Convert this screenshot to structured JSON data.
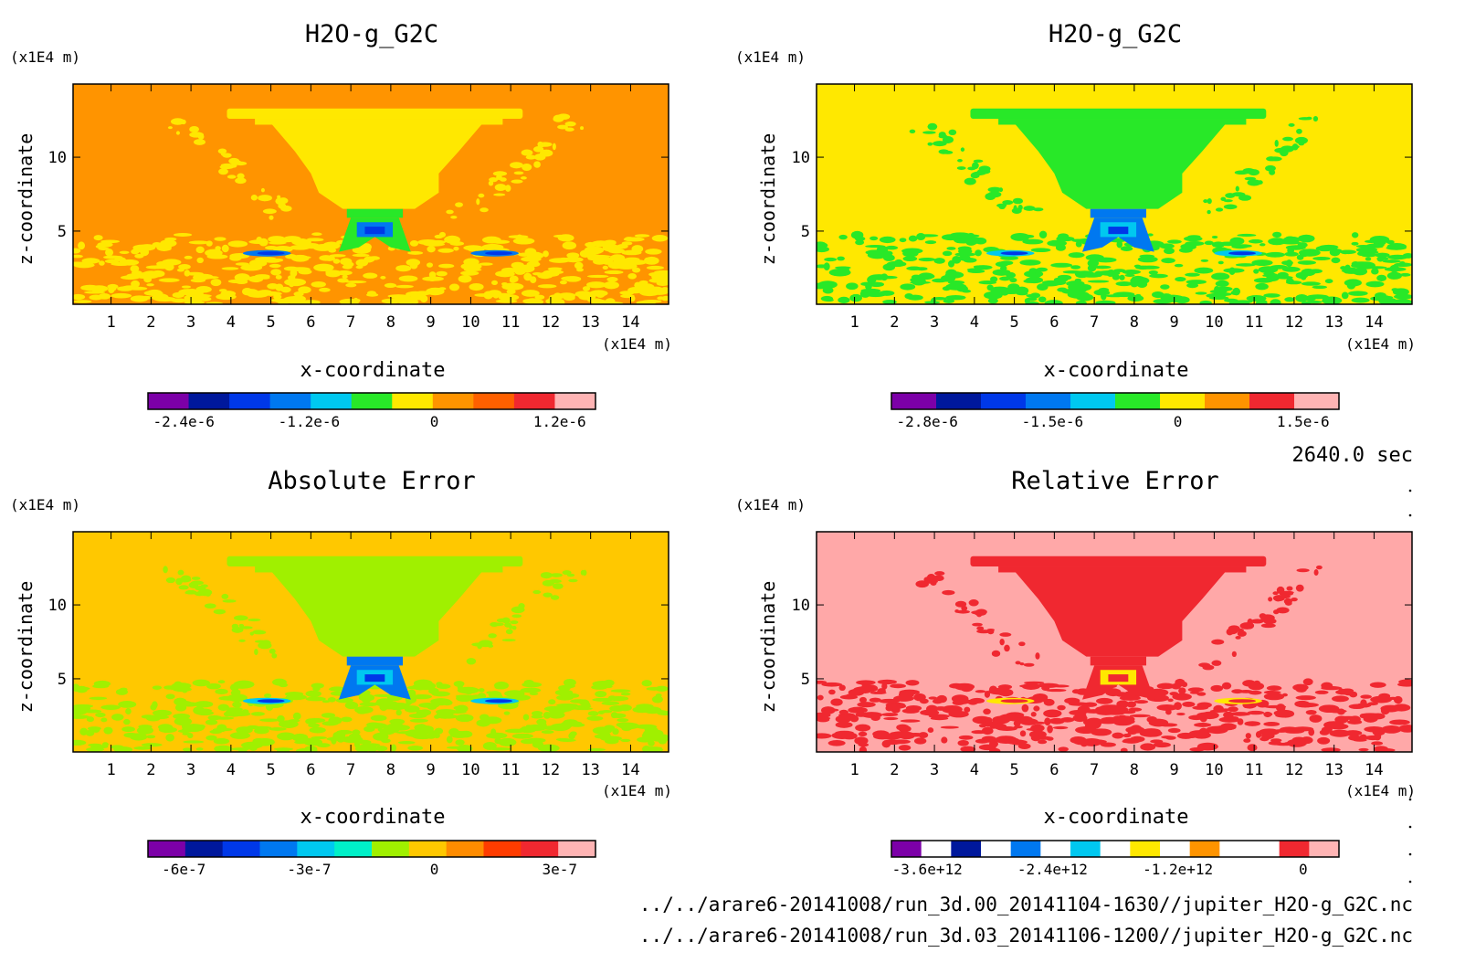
{
  "time_label": "2640.0 sec",
  "files": [
    "../../arare6-20141008/run_3d.00_20141104-1630//jupiter_H2O-g_G2C.nc",
    "../../arare6-20141008/run_3d.03_20141106-1200//jupiter_H2O-g_G2C.nc"
  ],
  "chart_data": [
    {
      "type": "heatmap",
      "title": "H2O-g_G2C",
      "xlabel": "x-coordinate",
      "ylabel": "z-coordinate",
      "x_unit": "(x1E4 m)",
      "y_unit": "(x1E4 m)",
      "xticks": [
        "1",
        "2",
        "3",
        "4",
        "5",
        "6",
        "7",
        "8",
        "9",
        "10",
        "11",
        "12",
        "13",
        "14"
      ],
      "yticks": [
        "5",
        "10"
      ],
      "xlim": [
        0.05,
        14.95
      ],
      "ylim": [
        0.05,
        14.95
      ],
      "background": "#ff9400",
      "levels_colors": [
        "#7c00a8",
        "#00189c",
        "#0038e8",
        "#0078f0",
        "#00c8f0",
        "#28e828",
        "#ffe800",
        "#ff9400",
        "#ff6000",
        "#f02830",
        "#ffb4b4"
      ],
      "colorbar_labels": [
        "-2.4e-6",
        "-1.2e-6",
        "0",
        "1.2e-6"
      ],
      "colors": {
        "plume": "#ffe800",
        "speckle": "#ffe800",
        "core": "#28e828",
        "inner": "#0078f0",
        "deep": "#0038e8"
      }
    },
    {
      "type": "heatmap",
      "title": "H2O-g_G2C",
      "xlabel": "x-coordinate",
      "ylabel": "z-coordinate",
      "x_unit": "(x1E4 m)",
      "y_unit": "(x1E4 m)",
      "xticks": [
        "1",
        "2",
        "3",
        "4",
        "5",
        "6",
        "7",
        "8",
        "9",
        "10",
        "11",
        "12",
        "13",
        "14"
      ],
      "yticks": [
        "5",
        "10"
      ],
      "xlim": [
        0.05,
        14.95
      ],
      "ylim": [
        0.05,
        14.95
      ],
      "background": "#ffe800",
      "levels_colors": [
        "#7c00a8",
        "#00189c",
        "#0038e8",
        "#0078f0",
        "#00c8f0",
        "#28e828",
        "#ffe800",
        "#ff9400",
        "#f02830",
        "#ffb4b4"
      ],
      "colorbar_labels": [
        "-2.8e-6",
        "-1.5e-6",
        "0",
        "1.5e-6"
      ],
      "colors": {
        "plume": "#28e828",
        "speckle": "#28e828",
        "core": "#0078f0",
        "inner": "#00c8f0",
        "deep": "#0038e8"
      }
    },
    {
      "type": "heatmap",
      "title": "Absolute Error",
      "xlabel": "x-coordinate",
      "ylabel": "z-coordinate",
      "x_unit": "(x1E4 m)",
      "y_unit": "(x1E4 m)",
      "xticks": [
        "1",
        "2",
        "3",
        "4",
        "5",
        "6",
        "7",
        "8",
        "9",
        "10",
        "11",
        "12",
        "13",
        "14"
      ],
      "yticks": [
        "5",
        "10"
      ],
      "xlim": [
        0.05,
        14.95
      ],
      "ylim": [
        0.05,
        14.95
      ],
      "background": "#ffc800",
      "levels_colors": [
        "#7c00a8",
        "#00189c",
        "#0038e8",
        "#0078f0",
        "#00c8f0",
        "#00f0c8",
        "#a0f000",
        "#ffc800",
        "#ff8c00",
        "#ff3c00",
        "#f02830",
        "#ffb4b4"
      ],
      "colorbar_labels": [
        "-6e-7",
        "-3e-7",
        "0",
        "3e-7"
      ],
      "colors": {
        "plume": "#a0f000",
        "speckle": "#a0f000",
        "core": "#0078f0",
        "inner": "#00c8f0",
        "deep": "#0038e8"
      }
    },
    {
      "type": "heatmap",
      "title": "Relative Error",
      "xlabel": "x-coordinate",
      "ylabel": "z-coordinate",
      "x_unit": "(x1E4 m)",
      "y_unit": "(x1E4 m)",
      "xticks": [
        "1",
        "2",
        "3",
        "4",
        "5",
        "6",
        "7",
        "8",
        "9",
        "10",
        "11",
        "12",
        "13",
        "14"
      ],
      "yticks": [
        "5",
        "10"
      ],
      "xlim": [
        0.05,
        14.95
      ],
      "ylim": [
        0.05,
        14.95
      ],
      "background": "#ffa8a8",
      "levels_colors": [
        "#7c00a8",
        "#ffffff",
        "#00189c",
        "#ffffff",
        "#0078f0",
        "#ffffff",
        "#00c8f0",
        "#ffffff",
        "#ffe800",
        "#ffffff",
        "#ff9400",
        "#ffffff",
        "#ffffff",
        "#f02830",
        "#ffb4b4"
      ],
      "colorbar_labels": [
        "-3.6e+12",
        "-2.4e+12",
        "-1.2e+12",
        "0"
      ],
      "colors": {
        "plume": "#f02830",
        "speckle": "#f02830",
        "core": "#f02830",
        "inner": "#ffe800",
        "deep": "#f02830"
      }
    }
  ]
}
